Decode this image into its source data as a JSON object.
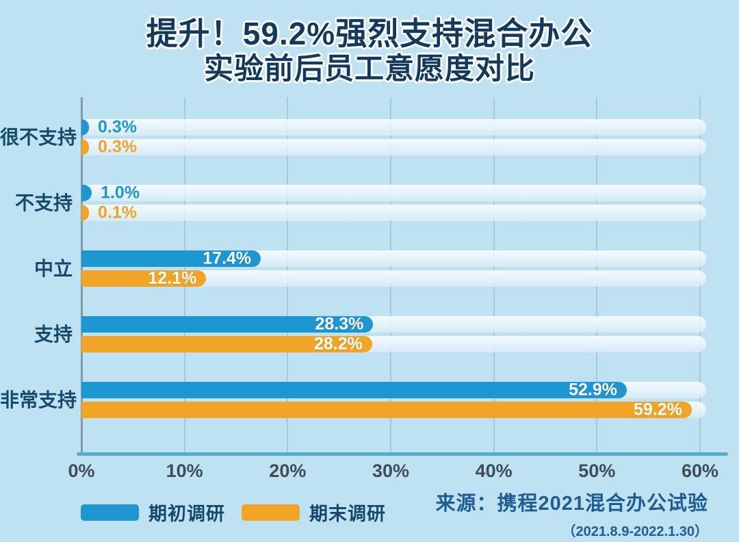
{
  "title": {
    "line1": "提升！59.2%强烈支持混合办公",
    "line2": "实验前后员工意愿度对比"
  },
  "chart_data": {
    "type": "bar",
    "orientation": "horizontal",
    "title": "提升！59.2%强烈支持混合办公 实验前后员工意愿度对比",
    "categories": [
      "很不支持",
      "不支持",
      "中立",
      "支持",
      "非常支持"
    ],
    "series": [
      {
        "name": "期初调研",
        "color": "#1e96d2",
        "values": [
          0.3,
          1.0,
          17.4,
          28.3,
          52.9
        ]
      },
      {
        "name": "期末调研",
        "color": "#f2a426",
        "values": [
          0.3,
          0.1,
          12.1,
          28.2,
          59.2
        ]
      }
    ],
    "value_suffix": "%",
    "xlim": [
      0,
      60
    ],
    "x_ticks": [
      "0%",
      "10%",
      "20%",
      "30%",
      "40%",
      "50%",
      "60%"
    ],
    "grid": true,
    "legend_position": "bottom-left",
    "inside_label_threshold": 12
  },
  "source": {
    "line1": "来源：携程2021混合办公试验",
    "line2": "（2021.8.9-2022.1.30）"
  },
  "colors": {
    "background": "#bfe2f2",
    "title_text": "#123a5c",
    "category_text": "#17496b",
    "tick_text": "#3e4d57",
    "axis_line": "#58a9cc",
    "grid_line": "#a3c8da",
    "bar_blue": "#1e96d2",
    "bar_orange": "#f2a426"
  }
}
